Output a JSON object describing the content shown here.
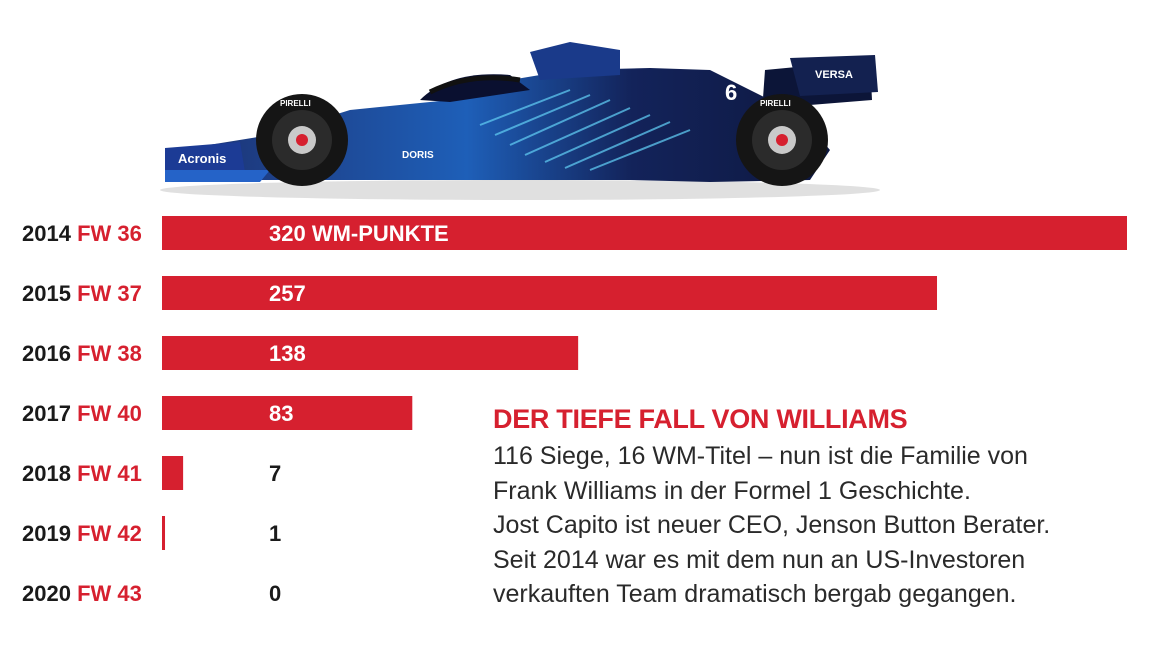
{
  "chart_data": {
    "type": "bar",
    "orientation": "horizontal",
    "colors": {
      "bar": "#d6202f",
      "year": "#1a1a1a",
      "model": "#d6202f",
      "value": "#1a1a1a",
      "value_on_bar": "#ffffff"
    },
    "rows": [
      {
        "year": "2014",
        "model": "FW 36",
        "value": 320,
        "label": "320 WM-PUNKTE"
      },
      {
        "year": "2015",
        "model": "FW 37",
        "value": 257,
        "label": "257"
      },
      {
        "year": "2016",
        "model": "FW 38",
        "value": 138,
        "label": "138"
      },
      {
        "year": "2017",
        "model": "FW 40",
        "value": 83,
        "label": "83"
      },
      {
        "year": "2018",
        "model": "FW 41",
        "value": 7,
        "label": "7"
      },
      {
        "year": "2019",
        "model": "FW 42",
        "value": 1,
        "label": "1"
      },
      {
        "year": "2020",
        "model": "FW 43",
        "value": 0,
        "label": "0"
      }
    ],
    "xlim": [
      0,
      320
    ],
    "grid": false
  },
  "note": {
    "title": "DER TIEFE FALL VON WILLIAMS",
    "lines": [
      "116 Siege, 16 WM-Titel – nun ist die Familie von",
      "Frank Williams in der Formel 1 Geschichte.",
      "Jost Capito ist neuer CEO, Jenson Button Berater.",
      "Seit 2014 war es mit dem nun an US-Investoren",
      "verkauften Team dramatisch bergab gegangen."
    ]
  },
  "car": {
    "sponsor_front": "Acronis",
    "sponsor_rear": "VERSA",
    "sponsor_side": "DORIS",
    "tyre_brand": "PIRELLI",
    "car_number": "6"
  }
}
